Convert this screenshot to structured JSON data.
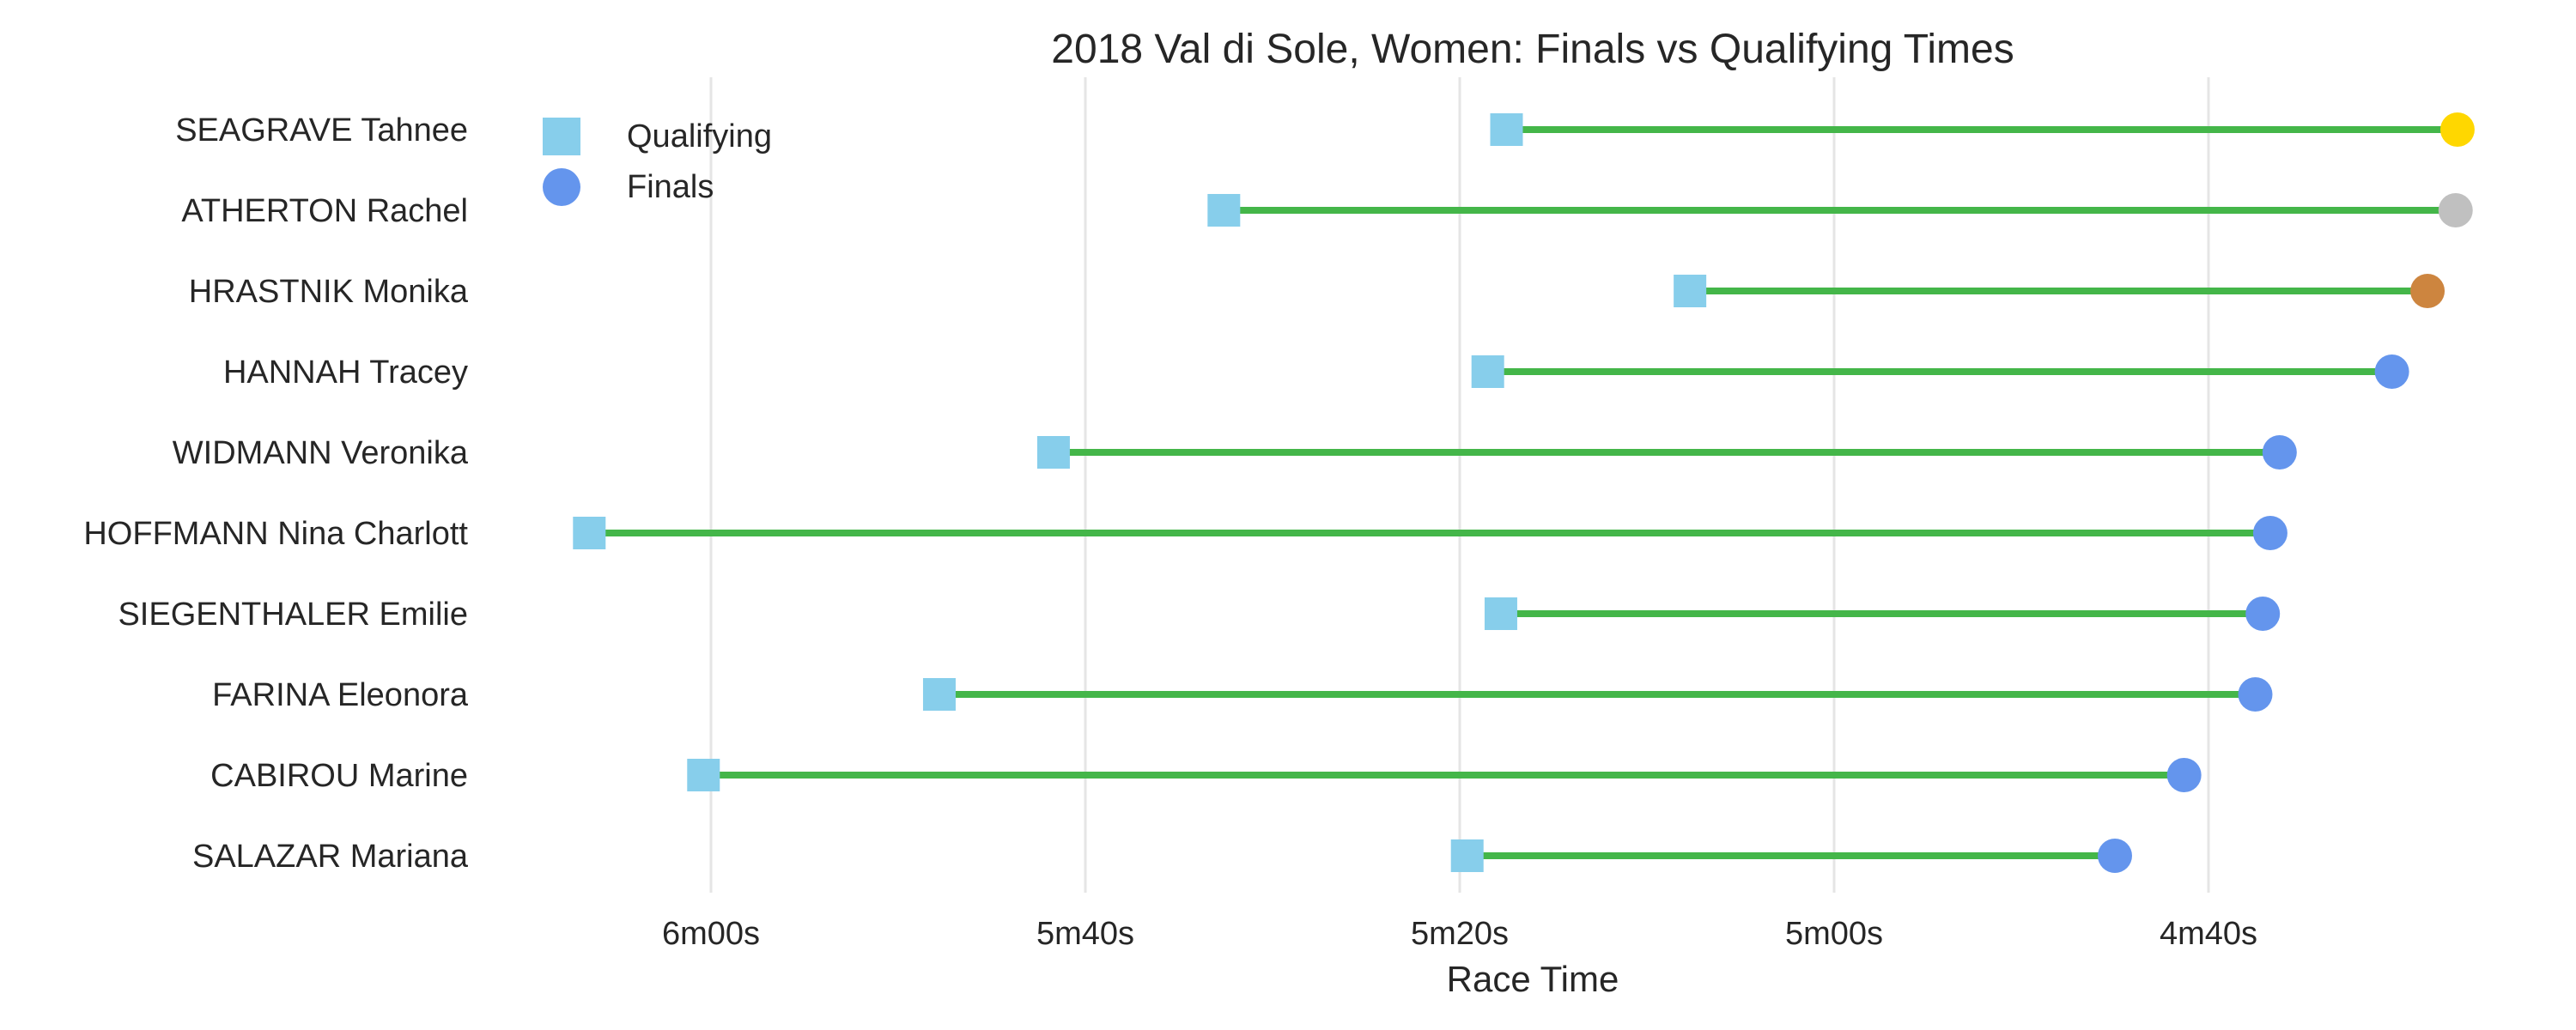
{
  "chart_data": {
    "type": "dumbbell",
    "title": "2018 Val di Sole, Women: Finals vs Qualifying Times",
    "xlabel": "Race Time",
    "ylabel": "",
    "x_axis_inverted": true,
    "x_unit": "seconds",
    "xlim": [
      366.5,
      269
    ],
    "x_ticks": [
      {
        "value": 360,
        "label": "6m00s"
      },
      {
        "value": 340,
        "label": "5m40s"
      },
      {
        "value": 320,
        "label": "5m20s"
      },
      {
        "value": 300,
        "label": "5m00s"
      },
      {
        "value": 280,
        "label": "4m40s"
      }
    ],
    "grid": "vertical",
    "legend": {
      "placement": "top-left",
      "entries": [
        {
          "label": "Qualifying",
          "marker": "square",
          "color": "#87CEEB"
        },
        {
          "label": "Finals",
          "marker": "circle",
          "color": "#6495ED"
        }
      ]
    },
    "connector_color": "#44B649",
    "riders": [
      {
        "name": "SEAGRAVE Tahnee",
        "qualifying": 317.5,
        "finals": 266.7,
        "finals_color": "#FFD700"
      },
      {
        "name": "ATHERTON Rachel",
        "qualifying": 332.6,
        "finals": 266.8,
        "finals_color": "#C0C0C0"
      },
      {
        "name": "HRASTNIK Monika",
        "qualifying": 307.7,
        "finals": 268.3,
        "finals_color": "#CD853F"
      },
      {
        "name": "HANNAH Tracey",
        "qualifying": 318.5,
        "finals": 270.2,
        "finals_color": "#6495ED"
      },
      {
        "name": "WIDMANN Veronika",
        "qualifying": 341.7,
        "finals": 276.2,
        "finals_color": "#6495ED"
      },
      {
        "name": "HOFFMANN Nina Charlott",
        "qualifying": 366.5,
        "finals": 276.7,
        "finals_color": "#6495ED"
      },
      {
        "name": "SIEGENTHALER Emilie",
        "qualifying": 317.8,
        "finals": 277.1,
        "finals_color": "#6495ED"
      },
      {
        "name": "FARINA Eleonora",
        "qualifying": 347.8,
        "finals": 277.5,
        "finals_color": "#6495ED"
      },
      {
        "name": "CABIROU Marine",
        "qualifying": 360.4,
        "finals": 281.3,
        "finals_color": "#6495ED"
      },
      {
        "name": "SALAZAR Mariana",
        "qualifying": 319.6,
        "finals": 285.0,
        "finals_color": "#6495ED"
      }
    ]
  }
}
